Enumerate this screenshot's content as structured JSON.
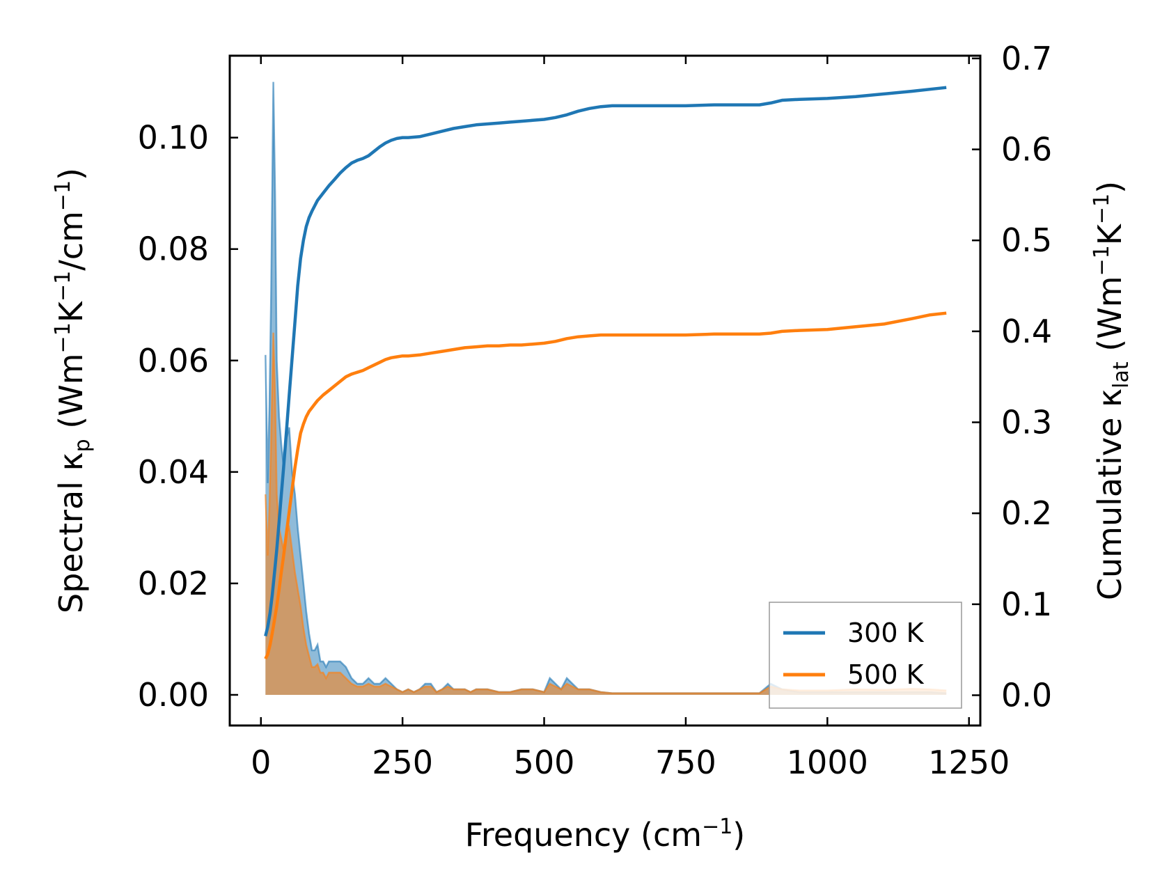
{
  "chart_data": {
    "type": "line",
    "xlabel": {
      "base": "Frequency (cm",
      "sup": "−1",
      "tail": ")"
    },
    "ylabel_left": {
      "pre": "Spectral κ",
      "sub": "p",
      "mid": " (Wm",
      "sup1": "−1",
      "k": "K",
      "sup2": "−1",
      "slash": "/cm",
      "sup3": "−1",
      "tail": ")"
    },
    "ylabel_right": {
      "pre": "Cumulative κ",
      "sub": "lat",
      "mid": " (Wm",
      "sup1": "−1",
      "k": "K",
      "sup2": "−1",
      "tail": ")"
    },
    "xlim": [
      -55,
      1270
    ],
    "ylim_left": [
      -0.0055,
      0.1147
    ],
    "ylim_right": [
      -0.0333,
      0.703
    ],
    "x_ticks": [
      0,
      250,
      500,
      750,
      1000,
      1250
    ],
    "x_tick_labels": [
      "0",
      "250",
      "500",
      "750",
      "1000",
      "1250"
    ],
    "y_left_ticks": [
      0.0,
      0.02,
      0.04,
      0.06,
      0.08,
      0.1
    ],
    "y_left_tick_labels": [
      "0.00",
      "0.02",
      "0.04",
      "0.06",
      "0.08",
      "0.10"
    ],
    "y_right_ticks": [
      0.0,
      0.1,
      0.2,
      0.3,
      0.4,
      0.5,
      0.6,
      0.7
    ],
    "y_right_tick_labels": [
      "0.0",
      "0.1",
      "0.2",
      "0.3",
      "0.4",
      "0.5",
      "0.6",
      "0.7"
    ],
    "legend_position": "bottom-right",
    "series": [
      {
        "name": "300 K",
        "color": "#1f77b4",
        "spectral": {
          "x": [
            8,
            12,
            15,
            18,
            22,
            25,
            28,
            32,
            36,
            40,
            45,
            50,
            55,
            60,
            65,
            70,
            75,
            80,
            85,
            90,
            95,
            100,
            105,
            110,
            115,
            120,
            130,
            140,
            150,
            160,
            170,
            180,
            190,
            200,
            210,
            220,
            230,
            240,
            250,
            260,
            270,
            280,
            290,
            300,
            310,
            320,
            330,
            340,
            350,
            360,
            370,
            380,
            400,
            420,
            440,
            460,
            480,
            500,
            510,
            520,
            530,
            540,
            550,
            560,
            570,
            580,
            600,
            620,
            700,
            800,
            880,
            900,
            920,
            950,
            1000,
            1050,
            1100,
            1150,
            1180,
            1210
          ],
          "y": [
            0.061,
            0.038,
            0.052,
            0.072,
            0.11,
            0.09,
            0.06,
            0.05,
            0.045,
            0.041,
            0.046,
            0.048,
            0.04,
            0.036,
            0.03,
            0.025,
            0.02,
            0.015,
            0.011,
            0.008,
            0.008,
            0.009,
            0.006,
            0.006,
            0.005,
            0.006,
            0.006,
            0.006,
            0.005,
            0.003,
            0.002,
            0.002,
            0.003,
            0.002,
            0.002,
            0.003,
            0.002,
            0.001,
            0.0005,
            0.001,
            0.0005,
            0.001,
            0.002,
            0.002,
            0.0005,
            0.001,
            0.002,
            0.001,
            0.001,
            0.001,
            0.0005,
            0.001,
            0.001,
            0.0005,
            0.0005,
            0.001,
            0.001,
            0.0005,
            0.003,
            0.002,
            0.001,
            0.003,
            0.002,
            0.001,
            0.001,
            0.001,
            0.0005,
            0.0003,
            0.0003,
            0.0003,
            0.0003,
            0.002,
            0.001,
            0.0005,
            0.0005,
            0.0005,
            0.0005,
            0.0005,
            0.0005,
            0.0003
          ]
        },
        "cumulative": {
          "x": [
            8,
            12,
            16,
            20,
            24,
            28,
            32,
            36,
            40,
            45,
            50,
            55,
            60,
            65,
            70,
            75,
            80,
            85,
            90,
            95,
            100,
            110,
            120,
            130,
            140,
            150,
            160,
            170,
            180,
            190,
            200,
            210,
            220,
            230,
            240,
            250,
            260,
            280,
            300,
            320,
            340,
            360,
            380,
            400,
            420,
            440,
            460,
            480,
            500,
            520,
            540,
            560,
            580,
            600,
            620,
            650,
            700,
            750,
            800,
            850,
            880,
            900,
            920,
            950,
            1000,
            1050,
            1100,
            1150,
            1180,
            1210
          ],
          "y": [
            0.065,
            0.075,
            0.09,
            0.11,
            0.135,
            0.16,
            0.19,
            0.22,
            0.25,
            0.29,
            0.33,
            0.37,
            0.41,
            0.45,
            0.48,
            0.5,
            0.515,
            0.525,
            0.532,
            0.538,
            0.544,
            0.552,
            0.56,
            0.567,
            0.574,
            0.58,
            0.585,
            0.588,
            0.59,
            0.593,
            0.598,
            0.603,
            0.607,
            0.61,
            0.612,
            0.613,
            0.613,
            0.614,
            0.617,
            0.62,
            0.623,
            0.625,
            0.627,
            0.628,
            0.629,
            0.63,
            0.631,
            0.632,
            0.633,
            0.635,
            0.638,
            0.642,
            0.645,
            0.647,
            0.648,
            0.648,
            0.648,
            0.648,
            0.649,
            0.649,
            0.649,
            0.651,
            0.654,
            0.655,
            0.656,
            0.658,
            0.661,
            0.664,
            0.666,
            0.668
          ]
        }
      },
      {
        "name": "500 K",
        "color": "#ff7f0e",
        "spectral": {
          "x": [
            8,
            12,
            15,
            18,
            22,
            25,
            28,
            32,
            36,
            40,
            45,
            50,
            55,
            60,
            65,
            70,
            75,
            80,
            85,
            90,
            95,
            100,
            105,
            110,
            115,
            120,
            130,
            140,
            150,
            160,
            170,
            180,
            190,
            200,
            210,
            220,
            230,
            240,
            250,
            260,
            270,
            280,
            290,
            300,
            310,
            320,
            330,
            340,
            350,
            360,
            370,
            380,
            400,
            420,
            440,
            460,
            480,
            500,
            510,
            520,
            530,
            540,
            550,
            560,
            570,
            580,
            600,
            620,
            700,
            800,
            880,
            900,
            920,
            950,
            1000,
            1050,
            1100,
            1150,
            1180,
            1210
          ],
          "y": [
            0.036,
            0.025,
            0.034,
            0.046,
            0.065,
            0.054,
            0.036,
            0.03,
            0.028,
            0.026,
            0.029,
            0.03,
            0.026,
            0.022,
            0.019,
            0.016,
            0.012,
            0.009,
            0.007,
            0.005,
            0.005,
            0.0055,
            0.004,
            0.004,
            0.003,
            0.004,
            0.004,
            0.004,
            0.003,
            0.002,
            0.0015,
            0.0015,
            0.002,
            0.0015,
            0.0015,
            0.002,
            0.0015,
            0.001,
            0.0005,
            0.001,
            0.0005,
            0.001,
            0.0015,
            0.0015,
            0.0005,
            0.001,
            0.0015,
            0.001,
            0.001,
            0.001,
            0.0005,
            0.001,
            0.001,
            0.0005,
            0.0005,
            0.001,
            0.001,
            0.0005,
            0.002,
            0.0015,
            0.001,
            0.002,
            0.0015,
            0.001,
            0.001,
            0.001,
            0.0005,
            0.0003,
            0.0003,
            0.0003,
            0.0003,
            0.0015,
            0.001,
            0.0008,
            0.0008,
            0.001,
            0.0009,
            0.0011,
            0.001,
            0.0008
          ]
        },
        "cumulative": {
          "x": [
            8,
            12,
            16,
            20,
            24,
            28,
            32,
            36,
            40,
            45,
            50,
            55,
            60,
            65,
            70,
            75,
            80,
            85,
            90,
            95,
            100,
            110,
            120,
            130,
            140,
            150,
            160,
            170,
            180,
            190,
            200,
            210,
            220,
            230,
            240,
            250,
            260,
            280,
            300,
            320,
            340,
            360,
            380,
            400,
            420,
            440,
            460,
            480,
            500,
            520,
            540,
            560,
            580,
            600,
            620,
            650,
            700,
            750,
            800,
            850,
            880,
            900,
            920,
            950,
            1000,
            1050,
            1100,
            1150,
            1180,
            1210
          ],
          "y": [
            0.04,
            0.045,
            0.055,
            0.068,
            0.083,
            0.098,
            0.116,
            0.135,
            0.153,
            0.178,
            0.202,
            0.226,
            0.25,
            0.27,
            0.288,
            0.298,
            0.306,
            0.312,
            0.316,
            0.32,
            0.324,
            0.33,
            0.335,
            0.34,
            0.345,
            0.35,
            0.353,
            0.355,
            0.357,
            0.36,
            0.363,
            0.366,
            0.369,
            0.371,
            0.372,
            0.373,
            0.373,
            0.374,
            0.376,
            0.378,
            0.38,
            0.382,
            0.383,
            0.384,
            0.384,
            0.385,
            0.385,
            0.386,
            0.387,
            0.389,
            0.392,
            0.394,
            0.395,
            0.396,
            0.396,
            0.396,
            0.396,
            0.396,
            0.397,
            0.397,
            0.397,
            0.398,
            0.4,
            0.401,
            0.402,
            0.405,
            0.408,
            0.414,
            0.418,
            0.42
          ]
        }
      }
    ]
  }
}
